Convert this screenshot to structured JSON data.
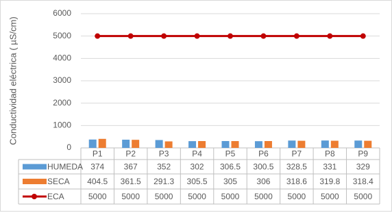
{
  "chart_data": {
    "type": "bar",
    "ylabel": "Conductividad eléctrica ( µS/cm)",
    "categories": [
      "P1",
      "P2",
      "P3",
      "P4",
      "P5",
      "P6",
      "P7",
      "P8",
      "P9"
    ],
    "series": [
      {
        "name": "HUMEDA",
        "type": "bar",
        "color": "#5b9bd5",
        "values": [
          374,
          367,
          352,
          302,
          306.5,
          300.5,
          328.5,
          331,
          329
        ]
      },
      {
        "name": "SECA",
        "type": "bar",
        "color": "#ed7d31",
        "values": [
          404.5,
          361.5,
          291.3,
          305.5,
          305,
          306,
          318.6,
          319.8,
          318.4
        ]
      },
      {
        "name": "ECA",
        "type": "line",
        "color": "#c00000",
        "values": [
          5000,
          5000,
          5000,
          5000,
          5000,
          5000,
          5000,
          5000,
          5000
        ]
      }
    ],
    "ylim": [
      0,
      6000
    ],
    "yticks": [
      0,
      1000,
      2000,
      3000,
      4000,
      5000,
      6000
    ],
    "grid": true
  }
}
